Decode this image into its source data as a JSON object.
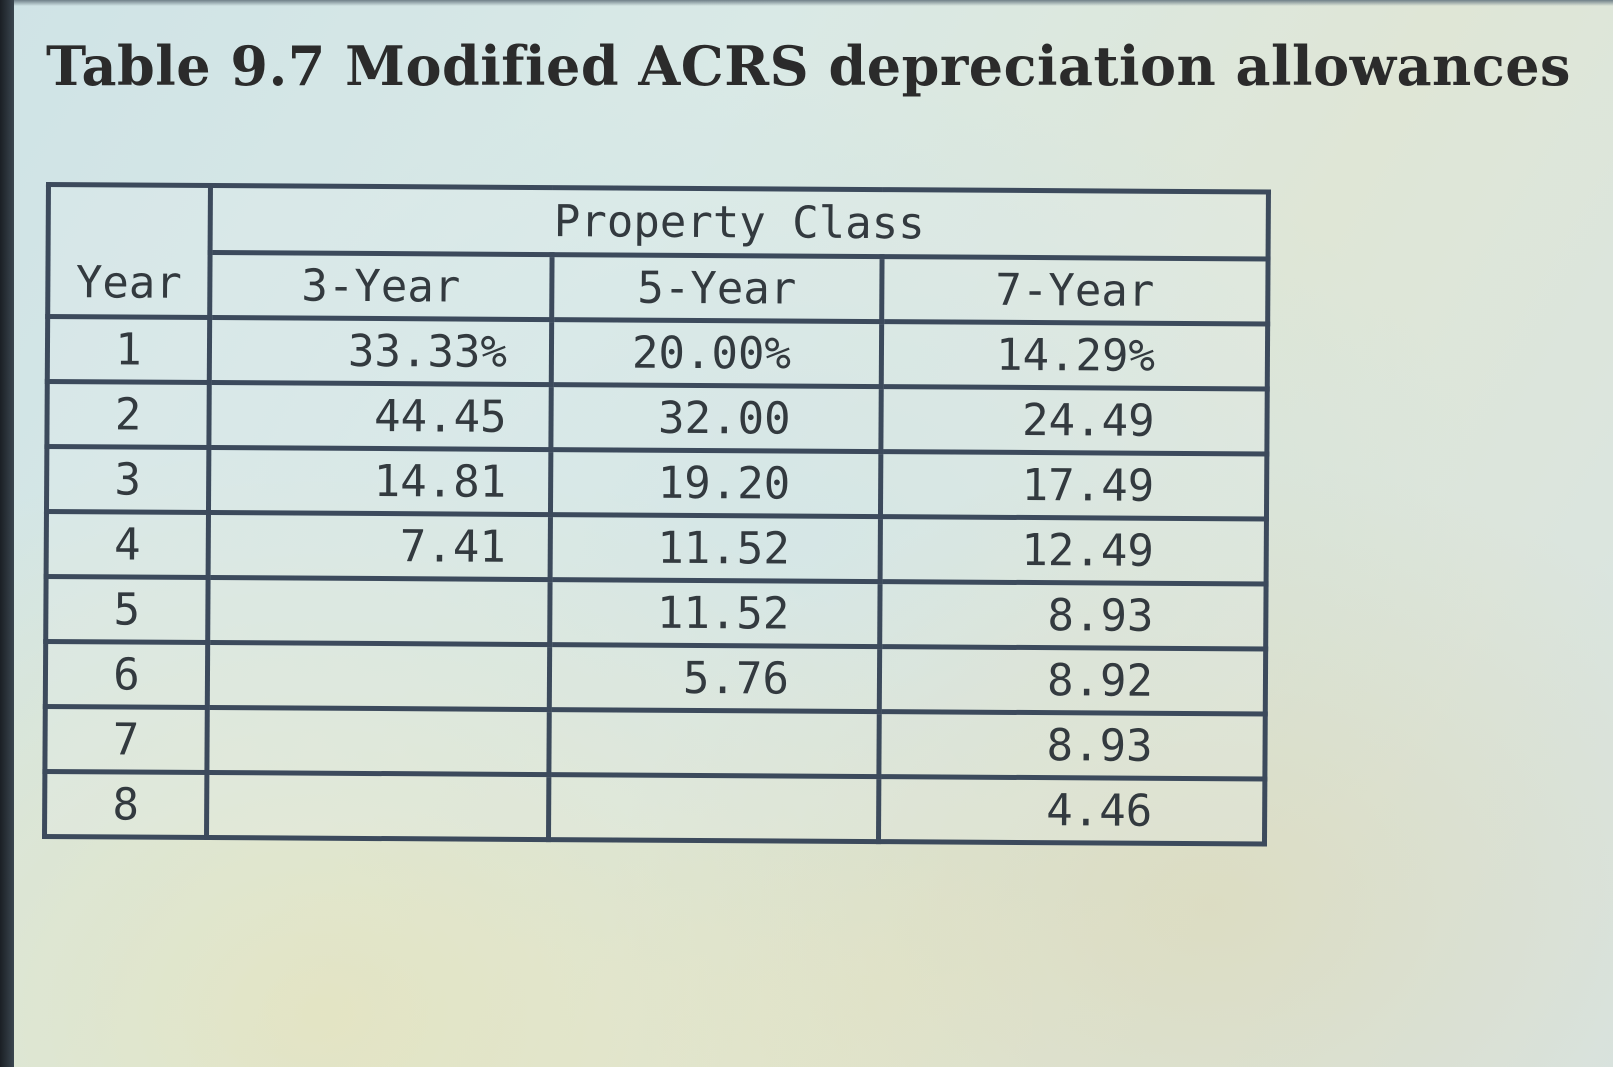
{
  "title": "Table 9.7 Modified ACRS depreciation allowances",
  "table": {
    "group_header": "Property Class",
    "columns": [
      "Year",
      "3-Year",
      "5-Year",
      "7-Year"
    ],
    "rows": [
      {
        "year": "1",
        "y3": "33.33%",
        "y5": "20.00%",
        "y7": "14.29%"
      },
      {
        "year": "2",
        "y3": "44.45",
        "y5": "32.00",
        "y7": "24.49"
      },
      {
        "year": "3",
        "y3": "14.81",
        "y5": "19.20",
        "y7": "17.49"
      },
      {
        "year": "4",
        "y3": "7.41",
        "y5": "11.52",
        "y7": "12.49"
      },
      {
        "year": "5",
        "y3": "",
        "y5": "11.52",
        "y7": "8.93"
      },
      {
        "year": "6",
        "y3": "",
        "y5": "5.76",
        "y7": "8.92"
      },
      {
        "year": "7",
        "y3": "",
        "y5": "",
        "y7": "8.93"
      },
      {
        "year": "8",
        "y3": "",
        "y5": "",
        "y7": "4.46"
      }
    ]
  }
}
